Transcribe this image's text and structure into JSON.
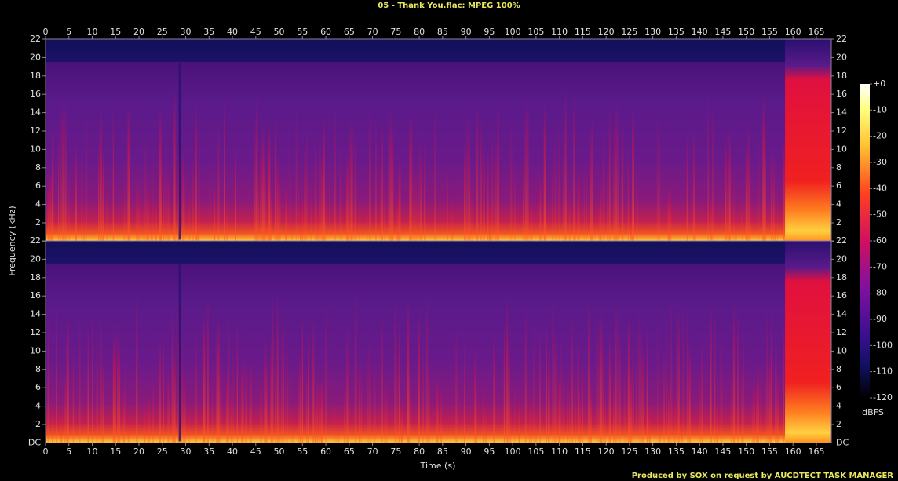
{
  "chart_data": {
    "type": "spectrogram",
    "title": "05 - Thank You.flac: MPEG 100%",
    "xlabel": "Time (s)",
    "ylabel": "Frequency (kHz)",
    "footer": "Produced by SOX on request by AUCDTECT TASK MANAGER",
    "xlim": [
      0,
      168.2
    ],
    "xticks": [
      0,
      5,
      10,
      15,
      20,
      25,
      30,
      35,
      40,
      45,
      50,
      55,
      60,
      65,
      70,
      75,
      80,
      85,
      90,
      95,
      100,
      105,
      110,
      115,
      120,
      125,
      130,
      135,
      140,
      145,
      150,
      155,
      160,
      165
    ],
    "ylim": [
      0,
      22
    ],
    "yticks": [
      {
        "value": 0,
        "label": "DC"
      },
      2,
      4,
      6,
      8,
      10,
      12,
      14,
      16,
      18,
      20,
      22
    ],
    "colorbar": {
      "label": "dBFS",
      "lim": [
        -120,
        0
      ],
      "ticks": [
        {
          "value": 0,
          "label": "+0"
        },
        -10,
        -20,
        -30,
        -40,
        -50,
        -60,
        -70,
        -80,
        -90,
        -100,
        -110,
        -120
      ]
    }
  }
}
